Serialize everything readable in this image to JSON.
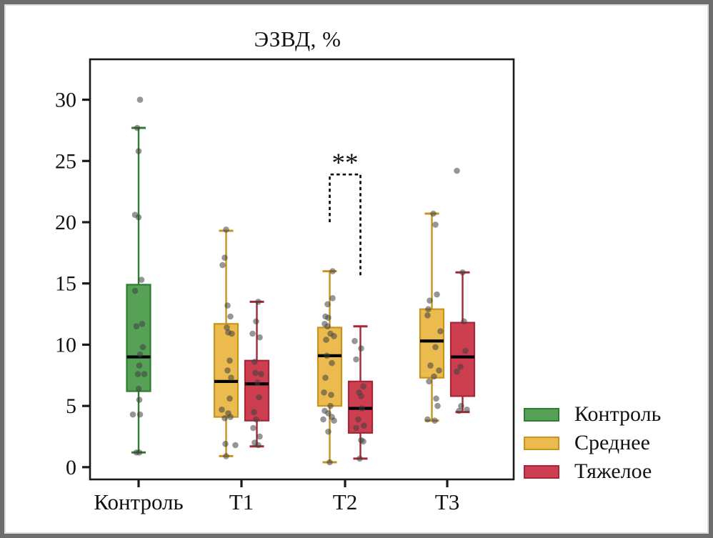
{
  "chart_data": {
    "type": "boxplot",
    "title": "ЭЗВД, %",
    "categories": [
      "Контроль",
      "Т1",
      "Т2",
      "Т3"
    ],
    "y_ticks": [
      30,
      25,
      20,
      15,
      10,
      5,
      0
    ],
    "ylim": [
      -1,
      33.3
    ],
    "grid": false,
    "legend_position": "right-bottom",
    "legend": [
      {
        "label": "Контроль",
        "fill": "#57a156",
        "stroke": "#2e7d33"
      },
      {
        "label": "Среднее",
        "fill": "#ebbb4f",
        "stroke": "#c8941c"
      },
      {
        "label": "Тяжелое",
        "fill": "#cd3e50",
        "stroke": "#a62637"
      }
    ],
    "boxes": [
      {
        "category": "Контроль",
        "series": "Контроль",
        "low": 1.2,
        "q1": 6.2,
        "median": 9.0,
        "q3": 14.9,
        "high": 27.7,
        "points": [
          [
            2,
            30.0
          ],
          [
            -2,
            27.7
          ],
          [
            0,
            25.8
          ],
          [
            -5,
            20.6
          ],
          [
            0,
            20.4
          ],
          [
            4,
            15.3
          ],
          [
            -5,
            14.4
          ],
          [
            5,
            11.7
          ],
          [
            -3,
            11.5
          ],
          [
            6,
            9.8
          ],
          [
            2,
            9.2
          ],
          [
            1,
            8.3
          ],
          [
            -1,
            7.6
          ],
          [
            8,
            7.6
          ],
          [
            0,
            6.4
          ],
          [
            1,
            5.5
          ],
          [
            -8,
            4.3
          ],
          [
            2,
            4.3
          ],
          [
            -3,
            1.2
          ],
          [
            1,
            1.2
          ]
        ]
      },
      {
        "category": "Т1",
        "series": "Среднее",
        "low": 0.9,
        "q1": 4.1,
        "median": 7.0,
        "q3": 11.7,
        "high": 19.3,
        "points": [
          [
            0,
            19.4
          ],
          [
            -2,
            17.1
          ],
          [
            -5,
            16.5
          ],
          [
            2,
            13.2
          ],
          [
            6,
            12.3
          ],
          [
            1,
            11.4
          ],
          [
            3,
            11.0
          ],
          [
            8,
            10.9
          ],
          [
            5,
            8.7
          ],
          [
            2,
            7.9
          ],
          [
            7,
            7.3
          ],
          [
            5,
            5.6
          ],
          [
            -6,
            4.7
          ],
          [
            3,
            4.4
          ],
          [
            6,
            4.1
          ],
          [
            -2,
            4.0
          ],
          [
            -1,
            1.9
          ],
          [
            13,
            1.8
          ],
          [
            0,
            0.9
          ]
        ]
      },
      {
        "category": "Т1",
        "series": "Тяжелое",
        "low": 1.7,
        "q1": 3.8,
        "median": 6.8,
        "q3": 8.7,
        "high": 13.5,
        "points": [
          [
            2,
            13.5
          ],
          [
            -1,
            11.9
          ],
          [
            -6,
            10.9
          ],
          [
            4,
            10.6
          ],
          [
            -3,
            8.6
          ],
          [
            -2,
            7.7
          ],
          [
            6,
            7.6
          ],
          [
            1,
            6.9
          ],
          [
            3,
            5.7
          ],
          [
            -4,
            4.5
          ],
          [
            -1,
            3.9
          ],
          [
            -5,
            3.2
          ],
          [
            4,
            2.5
          ],
          [
            -3,
            2.0
          ],
          [
            2,
            1.8
          ]
        ]
      },
      {
        "category": "Т2",
        "series": "Среднее",
        "low": 0.4,
        "q1": 5.0,
        "median": 9.1,
        "q3": 11.4,
        "high": 16.0,
        "points": [
          [
            4,
            16.0
          ],
          [
            4,
            13.8
          ],
          [
            -3,
            13.3
          ],
          [
            -6,
            12.3
          ],
          [
            -2,
            12.2
          ],
          [
            -7,
            11.7
          ],
          [
            -3,
            11.5
          ],
          [
            1,
            10.9
          ],
          [
            6,
            10.7
          ],
          [
            -5,
            10.4
          ],
          [
            -4,
            9.1
          ],
          [
            3,
            8.5
          ],
          [
            -6,
            7.3
          ],
          [
            -8,
            6.1
          ],
          [
            2,
            5.9
          ],
          [
            1,
            5.0
          ],
          [
            -7,
            4.6
          ],
          [
            -2,
            4.4
          ],
          [
            3,
            4.1
          ],
          [
            -9,
            3.9
          ],
          [
            6,
            3.8
          ],
          [
            -2,
            2.9
          ],
          [
            0,
            0.4
          ]
        ]
      },
      {
        "category": "Т2",
        "series": "Тяжелое",
        "low": 0.7,
        "q1": 2.8,
        "median": 4.8,
        "q3": 7.0,
        "high": 11.5,
        "points": [
          [
            -8,
            10.3
          ],
          [
            1,
            9.7
          ],
          [
            -6,
            8.8
          ],
          [
            4,
            6.6
          ],
          [
            -2,
            6.1
          ],
          [
            1,
            5.8
          ],
          [
            2,
            4.8
          ],
          [
            -3,
            3.9
          ],
          [
            5,
            3.4
          ],
          [
            -6,
            3.2
          ],
          [
            1,
            2.2
          ],
          [
            4,
            2.1
          ],
          [
            -1,
            0.7
          ]
        ]
      },
      {
        "category": "Т3",
        "series": "Среднее",
        "low": 3.8,
        "q1": 7.3,
        "median": 10.3,
        "q3": 12.9,
        "high": 20.7,
        "points": [
          [
            35,
            24.2
          ],
          [
            2,
            20.7
          ],
          [
            5,
            19.8
          ],
          [
            7,
            14.1
          ],
          [
            -3,
            13.6
          ],
          [
            -5,
            12.9
          ],
          [
            -6,
            12.4
          ],
          [
            12,
            11.1
          ],
          [
            5,
            9.8
          ],
          [
            -2,
            8.3
          ],
          [
            10,
            7.9
          ],
          [
            3,
            7.4
          ],
          [
            -4,
            7.0
          ],
          [
            6,
            5.6
          ],
          [
            8,
            5.0
          ],
          [
            -6,
            3.9
          ],
          [
            4,
            3.8
          ]
        ]
      },
      {
        "category": "Т3",
        "series": "Тяжелое",
        "low": 4.5,
        "q1": 5.8,
        "median": 9.0,
        "q3": 11.8,
        "high": 15.9,
        "points": [
          [
            0,
            15.9
          ],
          [
            2,
            11.9
          ],
          [
            4,
            9.5
          ],
          [
            -3,
            8.2
          ],
          [
            -8,
            7.8
          ],
          [
            -2,
            5.0
          ],
          [
            6,
            4.7
          ],
          [
            -5,
            4.6
          ]
        ]
      }
    ],
    "annotation": {
      "label": "**",
      "category": "Т2",
      "between_series": [
        "Среднее",
        "Тяжелое"
      ],
      "bar_y": 23.9,
      "left_leg_bottom": 20.0,
      "right_leg_bottom": 15.5,
      "style": "dashed"
    }
  }
}
